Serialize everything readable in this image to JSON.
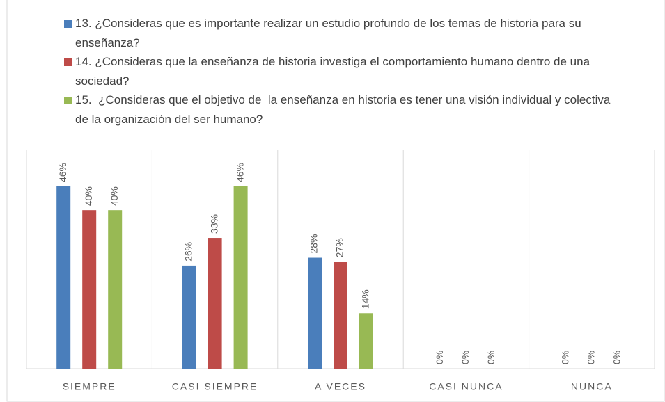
{
  "chart_data": {
    "type": "bar",
    "categories": [
      "SIEMPRE",
      "CASI SIEMPRE",
      "A VECES",
      "CASI NUNCA",
      "NUNCA"
    ],
    "series": [
      {
        "name": "13. ¿Consideras que es importante realizar un estudio profundo de los temas de historia para su enseñanza?",
        "color": "#4a7ebb",
        "values": [
          46,
          26,
          28,
          0,
          0
        ],
        "value_labels": [
          "46%",
          "26%",
          "28%",
          "0%",
          "0%"
        ]
      },
      {
        "name": "14. ¿Consideras que la enseñanza de historia investiga el comportamiento humano dentro de una sociedad?",
        "color": "#be4b48",
        "values": [
          40,
          33,
          27,
          0,
          0
        ],
        "value_labels": [
          "40%",
          "33%",
          "27%",
          "0%",
          "0%"
        ]
      },
      {
        "name": "15.  ¿Consideras que el objetivo de  la enseñanza en historia es tener una visión individual y colectiva de la organización del ser humano?",
        "color": "#98b954",
        "values": [
          40,
          46,
          14,
          0,
          0
        ],
        "value_labels": [
          "40%",
          "46%",
          "14%",
          "0%",
          "0%"
        ]
      }
    ],
    "legend": "top"
  }
}
